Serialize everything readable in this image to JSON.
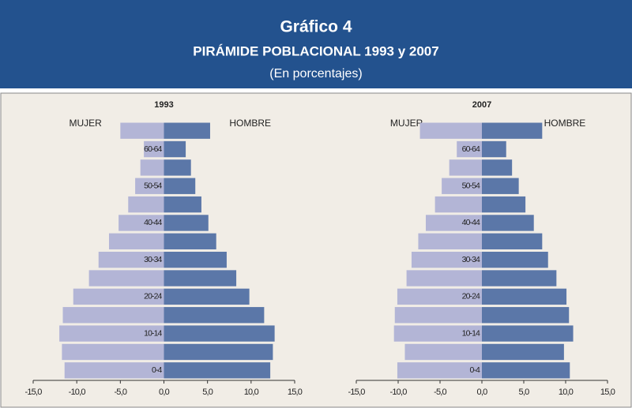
{
  "header": {
    "title": "Gráfico 4",
    "subtitle": "PIRÁMIDE POBLACIONAL 1993 y 2007",
    "note": "(En porcentajes)"
  },
  "chart_data": [
    {
      "type": "bar",
      "title": "1993",
      "categories": [
        null,
        "60-64",
        null,
        "50-54",
        null,
        "40-44",
        null,
        "30-34",
        null,
        "20-24",
        null,
        "10-14",
        null,
        "0-4"
      ],
      "series": [
        {
          "name": "MUJER",
          "color": "#b3b5d6",
          "values": [
            -5.0,
            -2.3,
            -2.7,
            -3.3,
            -4.1,
            -5.2,
            -6.3,
            -7.5,
            -8.6,
            -10.4,
            -11.6,
            -12.0,
            -11.7,
            -11.4
          ]
        },
        {
          "name": "HOMBRE",
          "color": "#5b77a8",
          "values": [
            5.3,
            2.5,
            3.1,
            3.6,
            4.3,
            5.1,
            6.0,
            7.2,
            8.3,
            9.8,
            11.5,
            12.7,
            12.5,
            12.2
          ]
        }
      ],
      "xlim": [
        -15,
        15
      ],
      "xticks": [
        {
          "value": -15,
          "label": "-15,0"
        },
        {
          "value": -10,
          "label": "-10,0"
        },
        {
          "value": -5,
          "label": "-5,0"
        },
        {
          "value": 0,
          "label": "0,0"
        },
        {
          "value": 5,
          "label": "5,0"
        },
        {
          "value": 10,
          "label": "10,0"
        },
        {
          "value": 15,
          "label": "15,0"
        }
      ]
    },
    {
      "type": "bar",
      "title": "2007",
      "categories": [
        null,
        "60-64",
        null,
        "50-54",
        null,
        "40-44",
        null,
        "30-34",
        null,
        "20-24",
        null,
        "10-14",
        null,
        "0-4"
      ],
      "series": [
        {
          "name": "MUJER",
          "color": "#b3b5d6",
          "values": [
            -7.4,
            -3.0,
            -3.9,
            -4.8,
            -5.6,
            -6.7,
            -7.6,
            -8.4,
            -9.0,
            -10.1,
            -10.4,
            -10.5,
            -9.2,
            -10.1
          ]
        },
        {
          "name": "HOMBRE",
          "color": "#5b77a8",
          "values": [
            7.2,
            2.9,
            3.6,
            4.4,
            5.2,
            6.2,
            7.2,
            7.9,
            8.9,
            10.1,
            10.4,
            10.9,
            9.8,
            10.5
          ]
        }
      ],
      "xlim": [
        -15,
        15
      ],
      "xticks": [
        {
          "value": -15,
          "label": "-15,0"
        },
        {
          "value": -10,
          "label": "-10,0"
        },
        {
          "value": -5,
          "label": "-5,0"
        },
        {
          "value": 0,
          "label": "0,0"
        },
        {
          "value": 5,
          "label": "5,0"
        },
        {
          "value": 10,
          "label": "10,0"
        },
        {
          "value": 15,
          "label": "15,0"
        }
      ]
    }
  ]
}
